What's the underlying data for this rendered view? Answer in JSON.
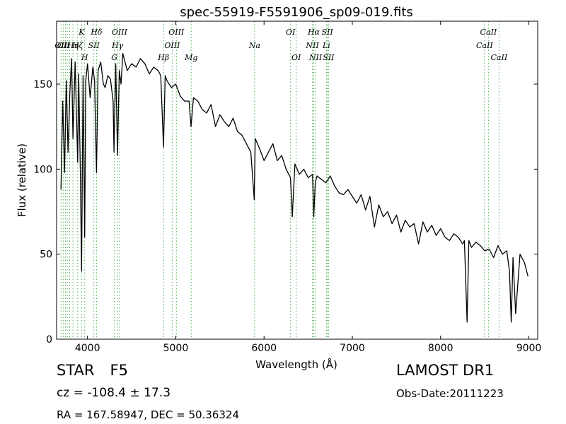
{
  "chart_data": {
    "type": "line",
    "title": "spec-55919-F5591906_sp09-019.fits",
    "xlabel": "Wavelength (Å)",
    "ylabel": "Flux (relative)",
    "xlim": [
      3650,
      9100
    ],
    "ylim": [
      0,
      187
    ],
    "xticks": [
      4000,
      5000,
      6000,
      7000,
      8000,
      9000
    ],
    "yticks": [
      0,
      50,
      100,
      150
    ],
    "grid": false,
    "series": [
      {
        "color": "#000000",
        "x": [
          3700,
          3720,
          3740,
          3760,
          3780,
          3800,
          3820,
          3835,
          3860,
          3889,
          3900,
          3920,
          3933,
          3950,
          3968,
          3980,
          4000,
          4030,
          4060,
          4080,
          4102,
          4120,
          4150,
          4180,
          4200,
          4230,
          4260,
          4290,
          4300,
          4320,
          4340,
          4360,
          4380,
          4400,
          4450,
          4500,
          4550,
          4600,
          4650,
          4700,
          4750,
          4800,
          4830,
          4861,
          4880,
          4900,
          4950,
          5000,
          5050,
          5100,
          5150,
          5173,
          5200,
          5250,
          5300,
          5350,
          5400,
          5450,
          5500,
          5550,
          5600,
          5650,
          5700,
          5750,
          5800,
          5850,
          5889,
          5900,
          5950,
          6000,
          6050,
          6100,
          6150,
          6200,
          6250,
          6300,
          6320,
          6350,
          6400,
          6450,
          6500,
          6550,
          6563,
          6580,
          6600,
          6650,
          6700,
          6750,
          6800,
          6850,
          6900,
          6950,
          7000,
          7050,
          7100,
          7150,
          7200,
          7250,
          7300,
          7350,
          7400,
          7450,
          7500,
          7550,
          7600,
          7650,
          7700,
          7750,
          7800,
          7850,
          7900,
          7950,
          8000,
          8050,
          8100,
          8150,
          8200,
          8250,
          8270,
          8300,
          8320,
          8350,
          8400,
          8450,
          8500,
          8550,
          8600,
          8650,
          8700,
          8750,
          8780,
          8800,
          8820,
          8850,
          8900,
          8950,
          8990
        ],
        "y": [
          88,
          140,
          98,
          152,
          110,
          145,
          165,
          118,
          163,
          104,
          156,
          95,
          40,
          155,
          60,
          152,
          162,
          142,
          160,
          152,
          98,
          158,
          163,
          150,
          148,
          155,
          153,
          140,
          110,
          162,
          108,
          158,
          150,
          168,
          158,
          162,
          160,
          165,
          162,
          156,
          160,
          158,
          155,
          113,
          155,
          152,
          148,
          150,
          143,
          140,
          140,
          125,
          142,
          140,
          135,
          133,
          138,
          125,
          132,
          128,
          125,
          130,
          122,
          120,
          115,
          110,
          82,
          118,
          112,
          105,
          110,
          115,
          105,
          108,
          100,
          95,
          72,
          103,
          97,
          100,
          95,
          97,
          72,
          92,
          96,
          94,
          92,
          96,
          90,
          86,
          85,
          88,
          84,
          80,
          85,
          76,
          84,
          66,
          79,
          72,
          75,
          68,
          73,
          63,
          70,
          66,
          68,
          56,
          69,
          63,
          67,
          61,
          65,
          60,
          58,
          62,
          60,
          56,
          58,
          10,
          58,
          54,
          57,
          55,
          52,
          53,
          48,
          55,
          50,
          52,
          40,
          10,
          48,
          15,
          50,
          45,
          37
        ]
      }
    ],
    "lines": [
      {
        "wl": 3700,
        "label": "OII",
        "row": 2
      },
      {
        "wl": 3728,
        "label": "OII",
        "row": 2
      },
      {
        "wl": 3750,
        "label": "",
        "row": 0
      },
      {
        "wl": 3771,
        "label": "",
        "row": 0
      },
      {
        "wl": 3798,
        "label": "",
        "row": 0
      },
      {
        "wl": 3835,
        "label": "Hη",
        "row": 3
      },
      {
        "wl": 3889,
        "label": "Hζ",
        "row": 3
      },
      {
        "wl": 3933,
        "label": "K",
        "row": 1
      },
      {
        "wl": 3968,
        "label": "H",
        "row": 4
      },
      {
        "wl": 4072,
        "label": "SII",
        "row": 3
      },
      {
        "wl": 4102,
        "label": "Hδ",
        "row": 1
      },
      {
        "wl": 4304,
        "label": "G",
        "row": 4
      },
      {
        "wl": 4340,
        "label": "Hγ",
        "row": 2
      },
      {
        "wl": 4363,
        "label": "OIII",
        "row": 1
      },
      {
        "wl": 4861,
        "label": "Hβ",
        "row": 4
      },
      {
        "wl": 4959,
        "label": "OIII",
        "row": 3
      },
      {
        "wl": 5007,
        "label": "OIII",
        "row": 1
      },
      {
        "wl": 5175,
        "label": "Mg",
        "row": 4
      },
      {
        "wl": 5893,
        "label": "Na",
        "row": 2
      },
      {
        "wl": 6300,
        "label": "OI",
        "row": 1
      },
      {
        "wl": 6364,
        "label": "OI",
        "row": 5
      },
      {
        "wl": 6548,
        "label": "NII",
        "row": 3
      },
      {
        "wl": 6563,
        "label": "Hα",
        "row": 1
      },
      {
        "wl": 6584,
        "label": "NII",
        "row": 5
      },
      {
        "wl": 6707,
        "label": "Li",
        "row": 3
      },
      {
        "wl": 6717,
        "label": "SII",
        "row": 1
      },
      {
        "wl": 6731,
        "label": "SII",
        "row": 5
      },
      {
        "wl": 8498,
        "label": "CaII",
        "row": 3
      },
      {
        "wl": 8542,
        "label": "CaII",
        "row": 1
      },
      {
        "wl": 8662,
        "label": "CaII",
        "row": 5
      }
    ],
    "extra_labels": [
      {
        "text": "Hθ",
        "wl": 3797,
        "row": 1
      },
      {
        "text": "OII",
        "wl": 3727,
        "row": 2
      },
      {
        "text": "Hη",
        "wl": 3835,
        "row": 3
      },
      {
        "text": "Hε",
        "wl": 3970,
        "row": 3
      },
      {
        "text": "Hζ",
        "wl": 3889,
        "row": 3
      }
    ]
  },
  "info": {
    "object_class": "STAR",
    "subclass": "F5",
    "cz": "cz = -108.4  ± 17.3",
    "radec": "RA = 167.58947, DEC = 50.36324",
    "survey": "LAMOST DR1",
    "obs_date": "Obs-Date:20111223"
  }
}
